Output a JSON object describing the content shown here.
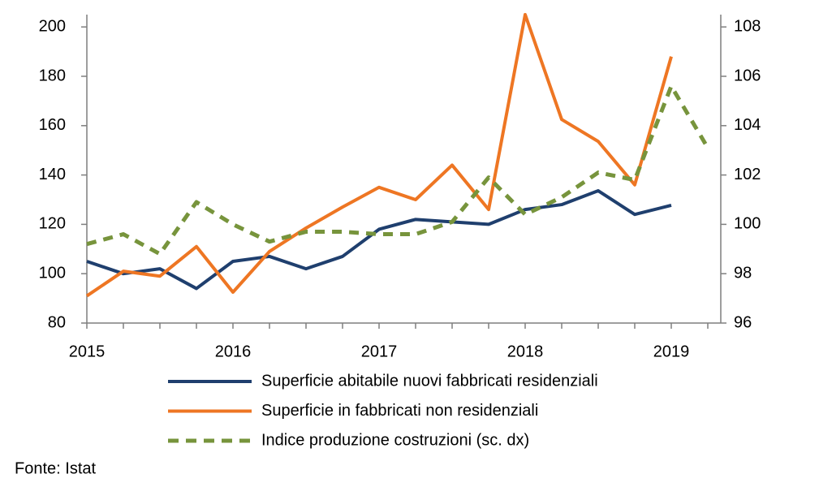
{
  "chart_data": {
    "type": "line",
    "categories": [
      "2015",
      null,
      null,
      null,
      "2016",
      null,
      null,
      null,
      "2017",
      null,
      null,
      null,
      "2018",
      null,
      null,
      null,
      "2019",
      null
    ],
    "series": [
      {
        "name": "Superficie abitabile nuovi fabbricati residenziali",
        "color": "#1f3f6e",
        "values": [
          105,
          100,
          102,
          94,
          105,
          107,
          102,
          107,
          118,
          122,
          121,
          120,
          126,
          128,
          133.6,
          124,
          127.7,
          null
        ]
      },
      {
        "name": "Superficie in fabbricati non residenziali",
        "color": "#ee7623",
        "values": [
          91,
          101,
          99,
          111,
          92.5,
          109,
          118.5,
          127,
          135,
          130,
          144,
          126,
          205,
          162.5,
          153.6,
          136,
          188,
          null
        ]
      },
      {
        "name": "Indice produzione costruzioni (sc. dx)",
        "color": "#77943c",
        "axis": "y2",
        "dashed": true,
        "values": [
          99.2,
          99.6,
          98.8,
          100.9,
          100.0,
          99.3,
          99.7,
          99.7,
          99.6,
          99.6,
          100.1,
          101.9,
          100.4,
          101.1,
          102.1,
          101.8,
          105.6,
          103.1
        ]
      }
    ],
    "ylim": [
      80,
      205
    ],
    "yticks": [
      80,
      100,
      120,
      140,
      160,
      180,
      200
    ],
    "y2lim": [
      96,
      108.5
    ],
    "y2ticks": [
      96,
      98,
      100,
      102,
      104,
      106,
      108
    ],
    "grid": false,
    "source": "Fonte: Istat"
  }
}
